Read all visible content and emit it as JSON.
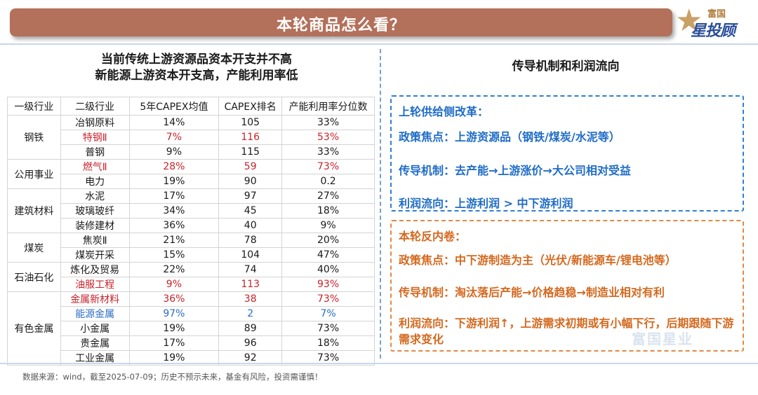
{
  "header": {
    "title": "本轮商品怎么看？"
  },
  "logo": {
    "top": "富国",
    "main": "星投顾",
    "icon": "star-icon"
  },
  "left": {
    "heading_line1": "当前传统上游资源品资本开支并不高",
    "heading_line2": "新能源上游资本开支高，产能利用率低"
  },
  "table": {
    "columns": [
      "一级行业",
      "二级行业",
      "5年CAPEX均值",
      "CAPEX排名",
      "产能利用率分位数"
    ],
    "groups": [
      {
        "name": "钢铁",
        "rows": [
          {
            "sub": "冶钢原料",
            "capex": "14%",
            "rank": "105",
            "util": "33%"
          },
          {
            "sub": "特钢Ⅱ",
            "capex": "7%",
            "rank": "116",
            "util": "53%"
          },
          {
            "sub": "普钢",
            "capex": "9%",
            "rank": "115",
            "util": "33%"
          }
        ]
      },
      {
        "name": "公用事业",
        "rows": [
          {
            "sub": "燃气Ⅱ",
            "capex": "28%",
            "rank": "59",
            "util": "73%"
          },
          {
            "sub": "电力",
            "capex": "19%",
            "rank": "90",
            "util": "0.2"
          }
        ]
      },
      {
        "name": "建筑材料",
        "rows": [
          {
            "sub": "水泥",
            "capex": "17%",
            "rank": "97",
            "util": "27%"
          },
          {
            "sub": "玻璃玻纤",
            "capex": "34%",
            "rank": "45",
            "util": "18%"
          },
          {
            "sub": "装修建材",
            "capex": "36%",
            "rank": "40",
            "util": "9%"
          }
        ]
      },
      {
        "name": "煤炭",
        "rows": [
          {
            "sub": "焦炭Ⅱ",
            "capex": "21%",
            "rank": "78",
            "util": "20%"
          },
          {
            "sub": "煤炭开采",
            "capex": "15%",
            "rank": "104",
            "util": "47%"
          }
        ]
      },
      {
        "name": "石油石化",
        "rows": [
          {
            "sub": "炼化及贸易",
            "capex": "22%",
            "rank": "74",
            "util": "40%"
          },
          {
            "sub": "油服工程",
            "capex": "9%",
            "rank": "113",
            "util": "93%"
          }
        ]
      },
      {
        "name": "有色金属",
        "rows": [
          {
            "sub": "金属新材料",
            "capex": "36%",
            "rank": "38",
            "util": "73%"
          },
          {
            "sub": "能源金属",
            "capex": "97%",
            "rank": "2",
            "util": "7%"
          },
          {
            "sub": "小金属",
            "capex": "19%",
            "rank": "89",
            "util": "73%"
          },
          {
            "sub": "贵金属",
            "capex": "17%",
            "rank": "96",
            "util": "18%"
          },
          {
            "sub": "工业金属",
            "capex": "19%",
            "rank": "92",
            "util": "73%"
          }
        ]
      }
    ]
  },
  "right": {
    "heading": "传导机制和利润流向",
    "box1": {
      "title": "上轮供给侧改革：",
      "policy": "政策焦点：上游资源品（钢铁/煤炭/水泥等）",
      "mechanism": "传导机制：去产能→上游涨价→大公司相对受益",
      "profit": "利润流向：上游利润 > 中下游利润"
    },
    "box2": {
      "title": "本轮反内卷：",
      "policy": "政策焦点：中下游制造为主（光伏/新能源车/锂电池等）",
      "mechanism": "传导机制：淘汰落后产能→价格趋稳→制造业相对有利",
      "profit": "利润流向：下游利润↑，上游需求初期或有小幅下行，后期跟随下游需求变化"
    }
  },
  "watermark": "富国星业",
  "footer": {
    "text": "数据来源：wind，截至2025-07-09；历史不预示未来，基金有风险，投资需谨慎！"
  },
  "colors": {
    "title_bar": "#b3705a",
    "blue_text": "#1f6cc7",
    "orange_text": "#d4691f",
    "red_text": "#c8232c",
    "highlight_blue": "#2b6cc4"
  }
}
